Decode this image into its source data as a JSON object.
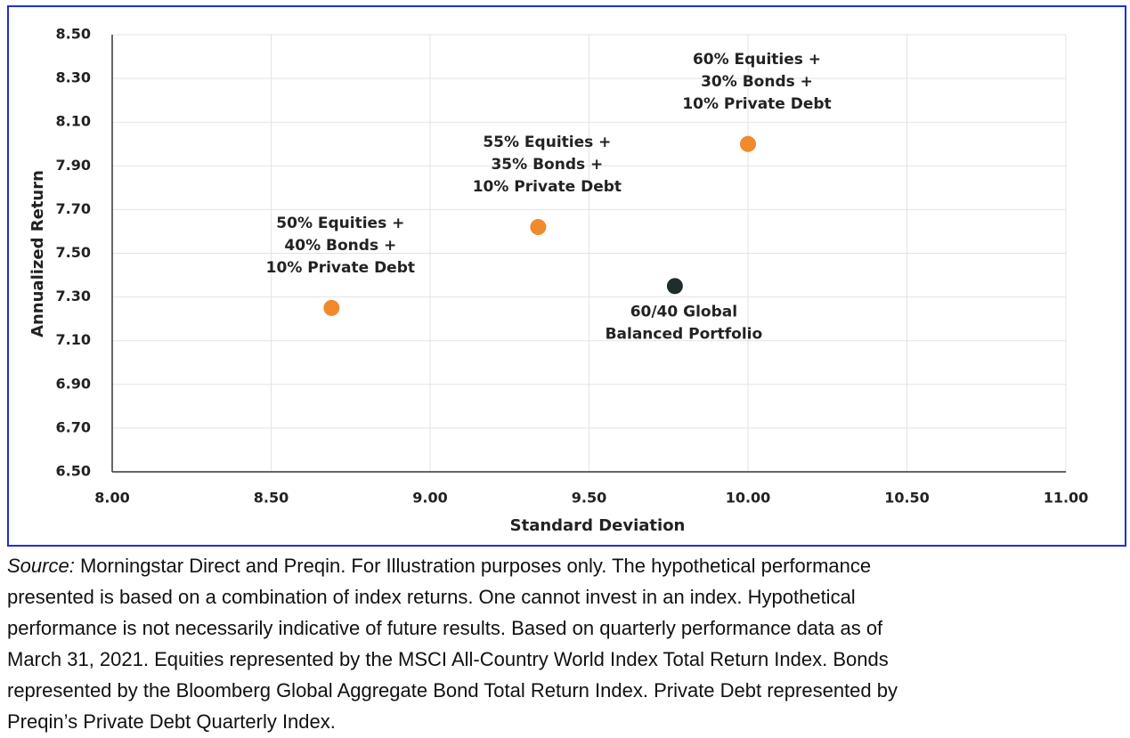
{
  "chart_data": {
    "type": "scatter",
    "x_label": "Standard Deviation",
    "y_label": "Annualized Return",
    "xlim": [
      8.0,
      11.0
    ],
    "ylim": [
      6.5,
      8.5
    ],
    "xticks": [
      {
        "value": 8.0,
        "label": "8.00"
      },
      {
        "value": 8.5,
        "label": "8.50"
      },
      {
        "value": 9.0,
        "label": "9.00"
      },
      {
        "value": 9.5,
        "label": "9.50"
      },
      {
        "value": 10.0,
        "label": "10.00"
      },
      {
        "value": 10.5,
        "label": "10.50"
      },
      {
        "value": 11.0,
        "label": "11.00"
      }
    ],
    "yticks": [
      {
        "value": 6.5,
        "label": "6.50"
      },
      {
        "value": 6.7,
        "label": "6.70"
      },
      {
        "value": 6.9,
        "label": "6.90"
      },
      {
        "value": 7.1,
        "label": "7.10"
      },
      {
        "value": 7.3,
        "label": "7.30"
      },
      {
        "value": 7.5,
        "label": "7.50"
      },
      {
        "value": 7.7,
        "label": "7.70"
      },
      {
        "value": 7.9,
        "label": "7.90"
      },
      {
        "value": 8.1,
        "label": "8.10"
      },
      {
        "value": 8.3,
        "label": "8.30"
      },
      {
        "value": 8.5,
        "label": "8.50"
      }
    ],
    "grid": true,
    "series": [
      {
        "label_lines": [
          "50% Equities +",
          "40% Bonds +",
          "10% Private Debt"
        ],
        "label_position": "above",
        "color": "#f08a2c",
        "x": [
          8.69
        ],
        "values": [
          7.25
        ]
      },
      {
        "label_lines": [
          "55% Equities +",
          "35% Bonds +",
          "10% Private Debt"
        ],
        "label_position": "above",
        "color": "#f08a2c",
        "x": [
          9.34
        ],
        "values": [
          7.62
        ]
      },
      {
        "label_lines": [
          "60% Equities +",
          "30% Bonds +",
          "10% Private Debt"
        ],
        "label_position": "above",
        "color": "#f08a2c",
        "x": [
          10.0
        ],
        "values": [
          8.0
        ]
      },
      {
        "label_lines": [
          "60/40 Global",
          "Balanced Portfolio"
        ],
        "label_position": "below",
        "color": "#1f2d2d",
        "x": [
          9.77
        ],
        "values": [
          7.35
        ]
      }
    ]
  },
  "footnote": {
    "source_label": "Source:",
    "lines": [
      "Morningstar Direct and Preqin. For Illustration purposes only. The hypothetical performance",
      "presented is based on a combination of index returns. One cannot invest in an index. Hypothetical",
      "performance is not necessarily indicative of future results. Based on quarterly performance data as of",
      "March 31, 2021. Equities represented by the MSCI All-Country World Index Total Return Index. Bonds",
      "represented by the Bloomberg Global Aggregate Bond Total Return Index. Private Debt represented by",
      "Preqin’s Private Debt Quarterly Index."
    ]
  }
}
